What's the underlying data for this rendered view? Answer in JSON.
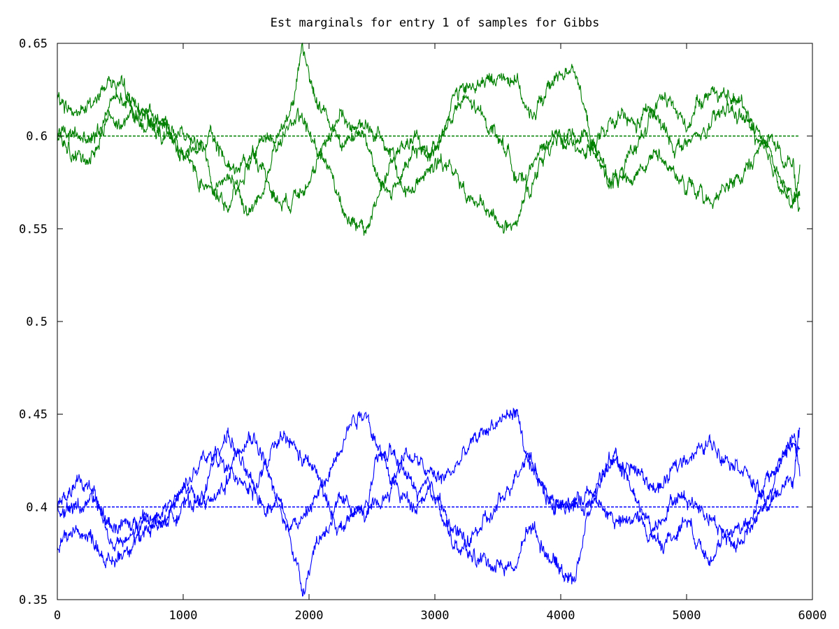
{
  "chart_data": {
    "type": "line",
    "title": "Est marginals for entry 1 of samples for Gibbs",
    "xlabel": "",
    "ylabel": "",
    "xlim": [
      0,
      6000
    ],
    "ylim": [
      0.35,
      0.65
    ],
    "x_ticks": [
      "0",
      "1000",
      "2000",
      "3000",
      "4000",
      "5000",
      "6000"
    ],
    "y_ticks": [
      "0.35",
      "0.4",
      "0.45",
      "0.5",
      "0.55",
      "0.6",
      "0.65"
    ],
    "grid": false,
    "legend": "none",
    "colors": {
      "green": "#008000",
      "blue": "#0000ff"
    },
    "reference_lines": [
      {
        "color": "green",
        "y": 0.6,
        "style": "dashed",
        "x_range": [
          0,
          5900
        ]
      },
      {
        "color": "blue",
        "y": 0.4,
        "style": "dashed",
        "x_range": [
          0,
          5900
        ]
      }
    ],
    "series": [
      {
        "color": "green",
        "x": [
          0,
          150,
          300,
          420,
          550,
          700,
          850,
          1000,
          1150,
          1250,
          1350,
          1450,
          1550,
          1650,
          1750,
          1850,
          1950,
          2050,
          2150,
          2250,
          2350,
          2450,
          2550,
          2650,
          2750,
          2850,
          2950,
          3050,
          3150,
          3250,
          3350,
          3450,
          3550,
          3650,
          3750,
          3850,
          3950,
          4100,
          4200,
          4300,
          4400,
          4500,
          4600,
          4700,
          4800,
          4900,
          5000,
          5100,
          5200,
          5300,
          5450,
          5550,
          5650,
          5750,
          5850,
          5900
        ],
        "y": [
          0.62,
          0.612,
          0.618,
          0.632,
          0.622,
          0.61,
          0.6,
          0.59,
          0.598,
          0.572,
          0.58,
          0.565,
          0.56,
          0.575,
          0.6,
          0.615,
          0.645,
          0.62,
          0.61,
          0.598,
          0.6,
          0.605,
          0.6,
          0.59,
          0.57,
          0.575,
          0.582,
          0.585,
          0.58,
          0.57,
          0.562,
          0.556,
          0.552,
          0.548,
          0.58,
          0.592,
          0.598,
          0.598,
          0.6,
          0.588,
          0.575,
          0.578,
          0.58,
          0.588,
          0.59,
          0.58,
          0.572,
          0.57,
          0.565,
          0.572,
          0.578,
          0.59,
          0.6,
          0.59,
          0.583,
          0.56
        ]
      },
      {
        "color": "green",
        "x": [
          0,
          150,
          300,
          420,
          550,
          700,
          850,
          1000,
          1150,
          1250,
          1350,
          1450,
          1550,
          1650,
          1750,
          1850,
          1950,
          2050,
          2150,
          2250,
          2350,
          2450,
          2550,
          2650,
          2750,
          2850,
          2950,
          3050,
          3150,
          3250,
          3350,
          3450,
          3550,
          3650,
          3750,
          3850,
          3950,
          4100,
          4200,
          4300,
          4400,
          4500,
          4600,
          4700,
          4800,
          4900,
          5000,
          5100,
          5200,
          5300,
          5450,
          5550,
          5650,
          5750,
          5850,
          5900
        ],
        "y": [
          0.6,
          0.6,
          0.598,
          0.61,
          0.61,
          0.612,
          0.606,
          0.592,
          0.575,
          0.573,
          0.56,
          0.575,
          0.59,
          0.6,
          0.595,
          0.608,
          0.608,
          0.595,
          0.585,
          0.565,
          0.552,
          0.548,
          0.568,
          0.585,
          0.595,
          0.598,
          0.59,
          0.6,
          0.612,
          0.62,
          0.612,
          0.605,
          0.595,
          0.58,
          0.57,
          0.588,
          0.6,
          0.598,
          0.592,
          0.598,
          0.605,
          0.61,
          0.605,
          0.615,
          0.605,
          0.595,
          0.595,
          0.6,
          0.605,
          0.615,
          0.61,
          0.6,
          0.585,
          0.575,
          0.56,
          0.582
        ]
      },
      {
        "color": "green",
        "x": [
          0,
          150,
          300,
          420,
          550,
          700,
          850,
          1000,
          1150,
          1250,
          1350,
          1450,
          1550,
          1650,
          1750,
          1850,
          1950,
          2050,
          2150,
          2250,
          2350,
          2450,
          2550,
          2650,
          2750,
          2850,
          2950,
          3050,
          3150,
          3250,
          3350,
          3450,
          3550,
          3650,
          3750,
          3850,
          3950,
          4100,
          4200,
          4300,
          4400,
          4500,
          4600,
          4700,
          4800,
          4900,
          5000,
          5100,
          5200,
          5300,
          5450,
          5550,
          5650,
          5750,
          5850,
          5900
        ],
        "y": [
          0.6,
          0.588,
          0.59,
          0.62,
          0.62,
          0.605,
          0.608,
          0.6,
          0.595,
          0.598,
          0.585,
          0.582,
          0.592,
          0.58,
          0.565,
          0.565,
          0.575,
          0.58,
          0.6,
          0.612,
          0.605,
          0.6,
          0.575,
          0.57,
          0.58,
          0.592,
          0.59,
          0.6,
          0.622,
          0.625,
          0.628,
          0.63,
          0.632,
          0.632,
          0.608,
          0.62,
          0.63,
          0.64,
          0.61,
          0.585,
          0.575,
          0.58,
          0.595,
          0.61,
          0.62,
          0.615,
          0.605,
          0.62,
          0.625,
          0.62,
          0.618,
          0.605,
          0.595,
          0.575,
          0.565,
          0.57
        ]
      },
      {
        "color": "blue",
        "x": [
          0,
          150,
          300,
          420,
          550,
          700,
          850,
          1000,
          1150,
          1250,
          1350,
          1450,
          1550,
          1650,
          1750,
          1850,
          1950,
          2050,
          2150,
          2250,
          2350,
          2450,
          2550,
          2650,
          2750,
          2850,
          2950,
          3050,
          3150,
          3250,
          3350,
          3450,
          3550,
          3650,
          3750,
          3850,
          3950,
          4100,
          4200,
          4300,
          4400,
          4500,
          4600,
          4700,
          4800,
          4900,
          5000,
          5100,
          5200,
          5300,
          5450,
          5550,
          5650,
          5750,
          5850,
          5900
        ],
        "y": [
          0.38,
          0.388,
          0.382,
          0.368,
          0.378,
          0.39,
          0.4,
          0.41,
          0.402,
          0.428,
          0.42,
          0.435,
          0.44,
          0.425,
          0.4,
          0.385,
          0.355,
          0.38,
          0.39,
          0.402,
          0.4,
          0.395,
          0.4,
          0.41,
          0.43,
          0.425,
          0.418,
          0.415,
          0.42,
          0.43,
          0.438,
          0.444,
          0.448,
          0.452,
          0.42,
          0.408,
          0.402,
          0.402,
          0.4,
          0.412,
          0.425,
          0.422,
          0.42,
          0.412,
          0.41,
          0.42,
          0.428,
          0.43,
          0.435,
          0.428,
          0.422,
          0.41,
          0.4,
          0.41,
          0.417,
          0.44
        ]
      },
      {
        "color": "blue",
        "x": [
          0,
          150,
          300,
          420,
          550,
          700,
          850,
          1000,
          1150,
          1250,
          1350,
          1450,
          1550,
          1650,
          1750,
          1850,
          1950,
          2050,
          2150,
          2250,
          2350,
          2450,
          2550,
          2650,
          2750,
          2850,
          2950,
          3050,
          3150,
          3250,
          3350,
          3450,
          3550,
          3650,
          3750,
          3850,
          3950,
          4100,
          4200,
          4300,
          4400,
          4500,
          4600,
          4700,
          4800,
          4900,
          5000,
          5100,
          5200,
          5300,
          5450,
          5550,
          5650,
          5750,
          5850,
          5900
        ],
        "y": [
          0.4,
          0.4,
          0.402,
          0.39,
          0.39,
          0.388,
          0.394,
          0.408,
          0.425,
          0.427,
          0.44,
          0.425,
          0.41,
          0.4,
          0.405,
          0.392,
          0.392,
          0.405,
          0.415,
          0.435,
          0.448,
          0.452,
          0.432,
          0.415,
          0.405,
          0.402,
          0.41,
          0.4,
          0.388,
          0.38,
          0.388,
          0.395,
          0.405,
          0.42,
          0.43,
          0.412,
          0.4,
          0.402,
          0.408,
          0.402,
          0.395,
          0.39,
          0.395,
          0.385,
          0.395,
          0.405,
          0.405,
          0.4,
          0.395,
          0.385,
          0.39,
          0.4,
          0.415,
          0.425,
          0.44,
          0.418
        ]
      },
      {
        "color": "blue",
        "x": [
          0,
          150,
          300,
          420,
          550,
          700,
          850,
          1000,
          1150,
          1250,
          1350,
          1450,
          1550,
          1650,
          1750,
          1850,
          1950,
          2050,
          2150,
          2250,
          2350,
          2450,
          2550,
          2650,
          2750,
          2850,
          2950,
          3050,
          3150,
          3250,
          3350,
          3450,
          3550,
          3650,
          3750,
          3850,
          3950,
          4100,
          4200,
          4300,
          4400,
          4500,
          4600,
          4700,
          4800,
          4900,
          5000,
          5100,
          5200,
          5300,
          5450,
          5550,
          5650,
          5750,
          5850,
          5900
        ],
        "y": [
          0.4,
          0.412,
          0.41,
          0.38,
          0.38,
          0.395,
          0.392,
          0.4,
          0.405,
          0.402,
          0.415,
          0.418,
          0.408,
          0.42,
          0.435,
          0.435,
          0.425,
          0.42,
          0.4,
          0.388,
          0.395,
          0.4,
          0.425,
          0.43,
          0.42,
          0.408,
          0.41,
          0.4,
          0.378,
          0.375,
          0.372,
          0.37,
          0.368,
          0.368,
          0.392,
          0.38,
          0.37,
          0.36,
          0.39,
          0.415,
          0.425,
          0.42,
          0.405,
          0.39,
          0.38,
          0.385,
          0.395,
          0.38,
          0.375,
          0.38,
          0.382,
          0.395,
          0.405,
          0.425,
          0.435,
          0.43
        ]
      }
    ]
  }
}
